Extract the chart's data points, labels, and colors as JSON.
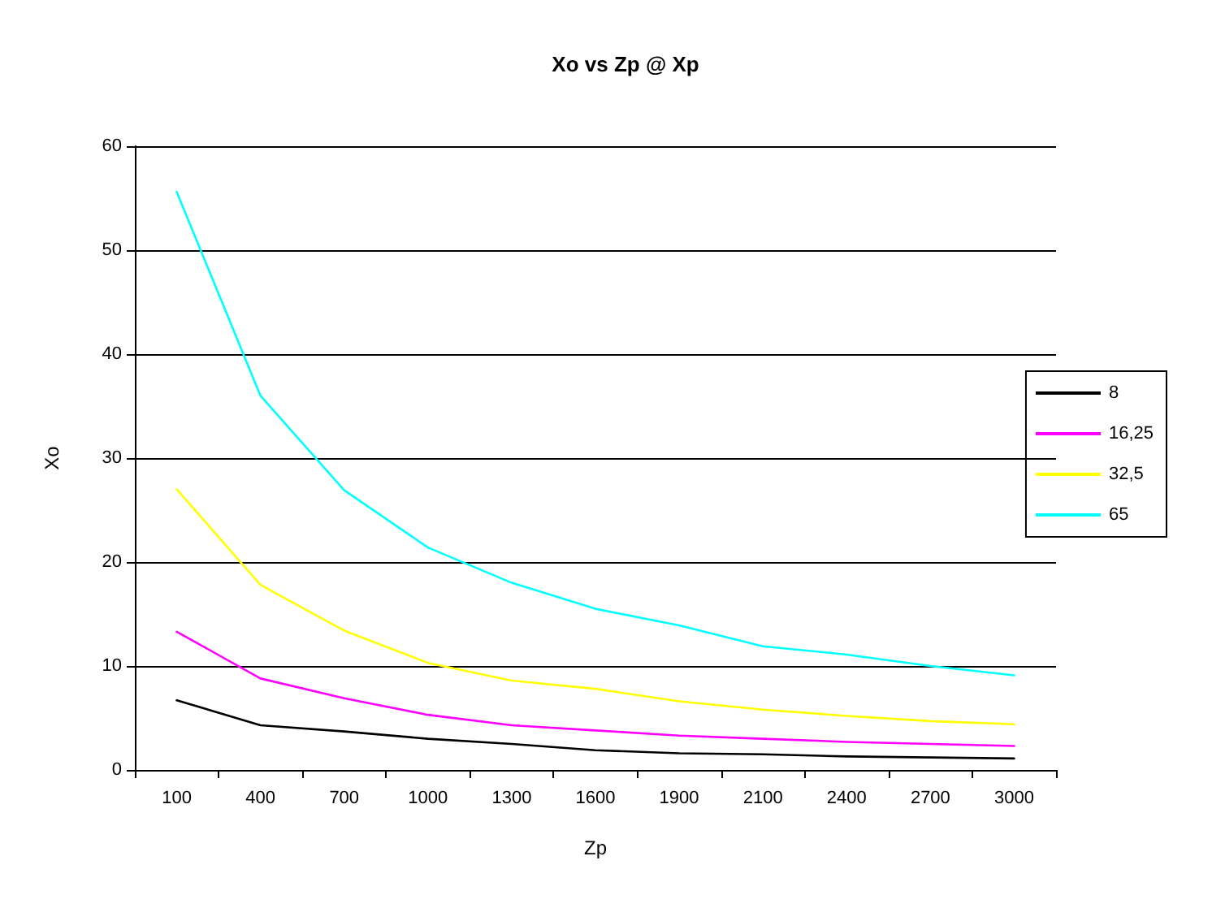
{
  "chart_data": {
    "type": "line",
    "title": "Xo vs Zp @ Xp",
    "xlabel": "Zp",
    "ylabel": "Xo",
    "categories": [
      "100",
      "400",
      "700",
      "1000",
      "1300",
      "1600",
      "1900",
      "2100",
      "2400",
      "2700",
      "3000"
    ],
    "series": [
      {
        "name": "8",
        "color": "#000000",
        "values": [
          6.7,
          4.3,
          3.7,
          3.0,
          2.5,
          1.9,
          1.6,
          1.5,
          1.3,
          1.2,
          1.1
        ]
      },
      {
        "name": "16,25",
        "color": "#ff00ff",
        "values": [
          13.3,
          8.8,
          6.9,
          5.3,
          4.3,
          3.8,
          3.3,
          3.0,
          2.7,
          2.5,
          2.3
        ]
      },
      {
        "name": "32,5",
        "color": "#ffff00",
        "values": [
          27,
          17.8,
          13.4,
          10.3,
          8.6,
          7.8,
          6.6,
          5.8,
          5.2,
          4.7,
          4.4
        ]
      },
      {
        "name": "65",
        "color": "#00ffff",
        "values": [
          55.6,
          36,
          26.9,
          21.4,
          18,
          15.5,
          13.9,
          11.9,
          11.1,
          10,
          9.1
        ]
      }
    ],
    "ylim": [
      0,
      60
    ],
    "yticks": [
      0,
      10,
      20,
      30,
      40,
      50,
      60
    ],
    "grid": "y",
    "legend": "right",
    "marker": "none",
    "line_style": "solid"
  }
}
